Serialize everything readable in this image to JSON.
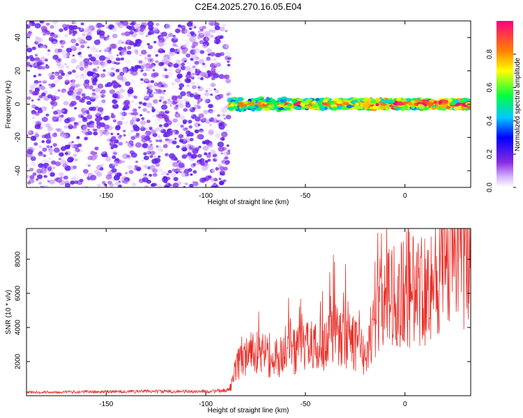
{
  "title": "C2E4.2025.270.16.05.E04",
  "colors": {
    "snr_line": "#e8302a",
    "axis": "#000000",
    "noise": "#7a1fe0"
  },
  "chart_data": [
    {
      "type": "heatmap",
      "xlabel": "Height of straight line (km)",
      "ylabel": "Frequency (Hz)",
      "xlim": [
        -190,
        33
      ],
      "ylim": [
        -50,
        50
      ],
      "xticks": [
        -150,
        -100,
        -50,
        0
      ],
      "yticks": [
        -40,
        -20,
        0,
        20,
        40
      ],
      "colorbar": {
        "label": "Normalized spectral amplitude",
        "range": [
          0,
          1
        ],
        "ticks": [
          "0.0",
          "0.2",
          "0.4",
          "0.6",
          "0.8"
        ]
      },
      "regions": [
        {
          "name": "broadband noise",
          "x": [
            -190,
            -88
          ],
          "freq": [
            -50,
            50
          ],
          "amplitude": [
            0.0,
            0.25
          ]
        },
        {
          "name": "signal band",
          "x": [
            -88,
            33
          ],
          "freq_center": 0,
          "freq_width": 6,
          "amplitude": [
            0.3,
            1.0
          ]
        }
      ]
    },
    {
      "type": "line",
      "xlabel": "Height of straight line (km)",
      "ylabel": "SNR (10 * v/v)",
      "xlim": [
        -190,
        33
      ],
      "ylim": [
        0,
        9800
      ],
      "xticks": [
        -150,
        -100,
        -50,
        0
      ],
      "yticks": [
        2000,
        4000,
        6000,
        8000
      ],
      "series": [
        {
          "name": "SNR",
          "x": [
            -190,
            -170,
            -150,
            -130,
            -110,
            -95,
            -88,
            -85,
            -82,
            -80,
            -75,
            -70,
            -65,
            -60,
            -55,
            -50,
            -45,
            -40,
            -35,
            -30,
            -25,
            -20,
            -17,
            -15,
            -10,
            -5,
            0,
            5,
            10,
            15,
            20,
            25,
            30,
            33
          ],
          "values": [
            200,
            220,
            230,
            260,
            240,
            260,
            350,
            1500,
            2300,
            2000,
            2500,
            2300,
            2200,
            2400,
            2600,
            2800,
            2900,
            3200,
            3500,
            3300,
            3000,
            2600,
            3500,
            5000,
            5600,
            5900,
            5700,
            6200,
            6500,
            6900,
            7600,
            8000,
            8600,
            9000
          ]
        }
      ]
    }
  ]
}
